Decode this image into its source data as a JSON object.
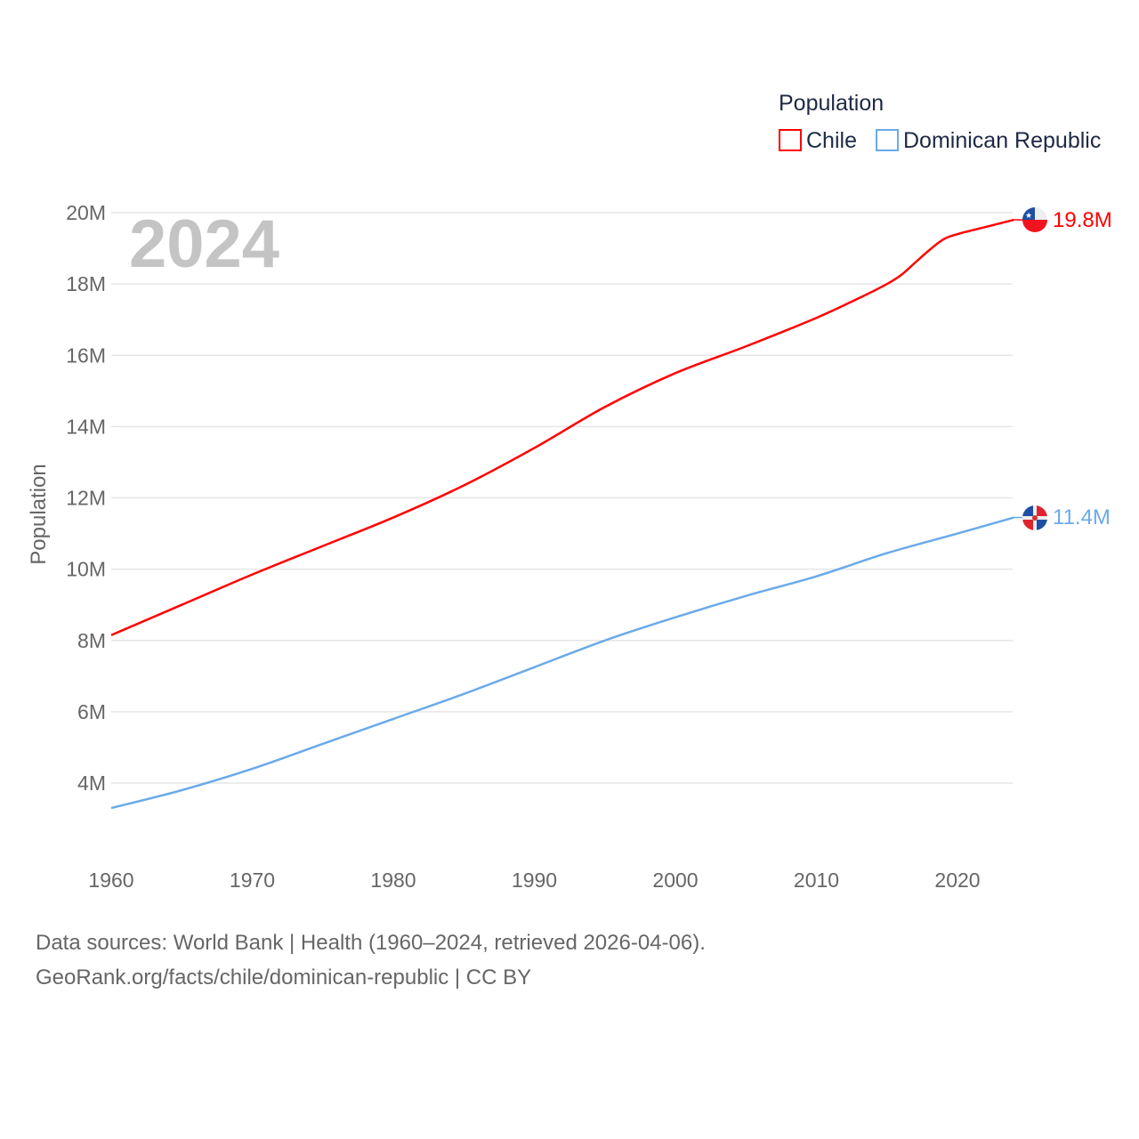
{
  "chart_data": {
    "type": "line",
    "title": "Population",
    "overlay_year": "2024",
    "xlabel": "",
    "ylabel": "Population",
    "xlim": [
      1960,
      2024
    ],
    "ylim": [
      2.5,
      20.5
    ],
    "x_ticks": [
      "1960",
      "1970",
      "1980",
      "1990",
      "2000",
      "2010",
      "2020"
    ],
    "y_ticks": [
      {
        "value": 4,
        "label": "4M"
      },
      {
        "value": 6,
        "label": "6M"
      },
      {
        "value": 8,
        "label": "8M"
      },
      {
        "value": 10,
        "label": "10M"
      },
      {
        "value": 12,
        "label": "12M"
      },
      {
        "value": 14,
        "label": "14M"
      },
      {
        "value": 16,
        "label": "16M"
      },
      {
        "value": 18,
        "label": "18M"
      },
      {
        "value": 20,
        "label": "20M"
      }
    ],
    "grid": true,
    "legend_position": "top-right",
    "series": [
      {
        "name": "Chile",
        "color": "#ff0000",
        "end_label": "19.8M",
        "flag": "chile-flag",
        "x": [
          1960,
          1965,
          1970,
          1975,
          1980,
          1985,
          1990,
          1995,
          2000,
          2005,
          2010,
          2013,
          2015,
          2016,
          2017,
          2018,
          2019,
          2020,
          2022,
          2024
        ],
        "values": [
          8.15,
          9.0,
          9.85,
          10.65,
          11.45,
          12.35,
          13.4,
          14.55,
          15.5,
          16.25,
          17.05,
          17.6,
          18.0,
          18.25,
          18.6,
          18.95,
          19.25,
          19.4,
          19.6,
          19.8
        ]
      },
      {
        "name": "Dominican Republic",
        "color": "#6aaaea",
        "end_label": "11.4M",
        "flag": "dominican-republic-flag",
        "x": [
          1960,
          1965,
          1970,
          1975,
          1980,
          1985,
          1990,
          1995,
          2000,
          2005,
          2010,
          2015,
          2020,
          2024
        ],
        "values": [
          3.3,
          3.8,
          4.4,
          5.1,
          5.8,
          6.5,
          7.25,
          8.0,
          8.65,
          9.25,
          9.8,
          10.45,
          11.0,
          11.45
        ]
      }
    ]
  },
  "footer": {
    "line1": "Data sources: World Bank | Health (1960–2024, retrieved 2026-04-06).",
    "line2": "GeoRank.org/facts/chile/dominican-republic | CC BY"
  }
}
